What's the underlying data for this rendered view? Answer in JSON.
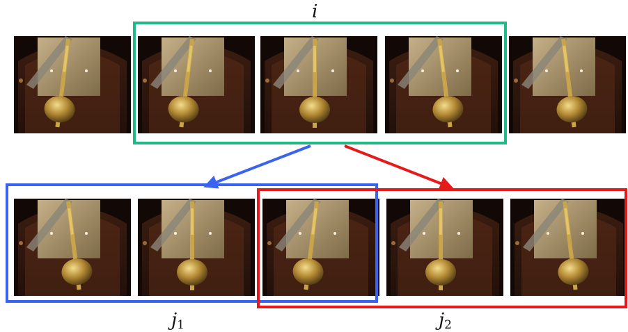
{
  "labels": {
    "top": "i",
    "left_base": "j",
    "left_sub": "1",
    "right_base": "j",
    "right_sub": "2"
  },
  "colors": {
    "i_box": "#22b888",
    "j1_box": "#3a63f0",
    "j2_box": "#e51a1a",
    "wood_dark": "#2a140b",
    "wood_mid": "#5a2c18",
    "plate": "#a8926a",
    "brass": "#c9a44a"
  },
  "frames": {
    "top_row": [
      {
        "name": "frame-top-1",
        "pose": "left"
      },
      {
        "name": "frame-top-2",
        "pose": "left"
      },
      {
        "name": "frame-top-3",
        "pose": "center"
      },
      {
        "name": "frame-top-4",
        "pose": "right"
      },
      {
        "name": "frame-top-5",
        "pose": "right"
      }
    ],
    "bottom_row": [
      {
        "name": "frame-bottom-1",
        "pose": "right"
      },
      {
        "name": "frame-bottom-2",
        "pose": "center"
      },
      {
        "name": "frame-bottom-3",
        "pose": "left"
      },
      {
        "name": "frame-bottom-4",
        "pose": "center"
      },
      {
        "name": "frame-bottom-5",
        "pose": "right"
      }
    ]
  }
}
